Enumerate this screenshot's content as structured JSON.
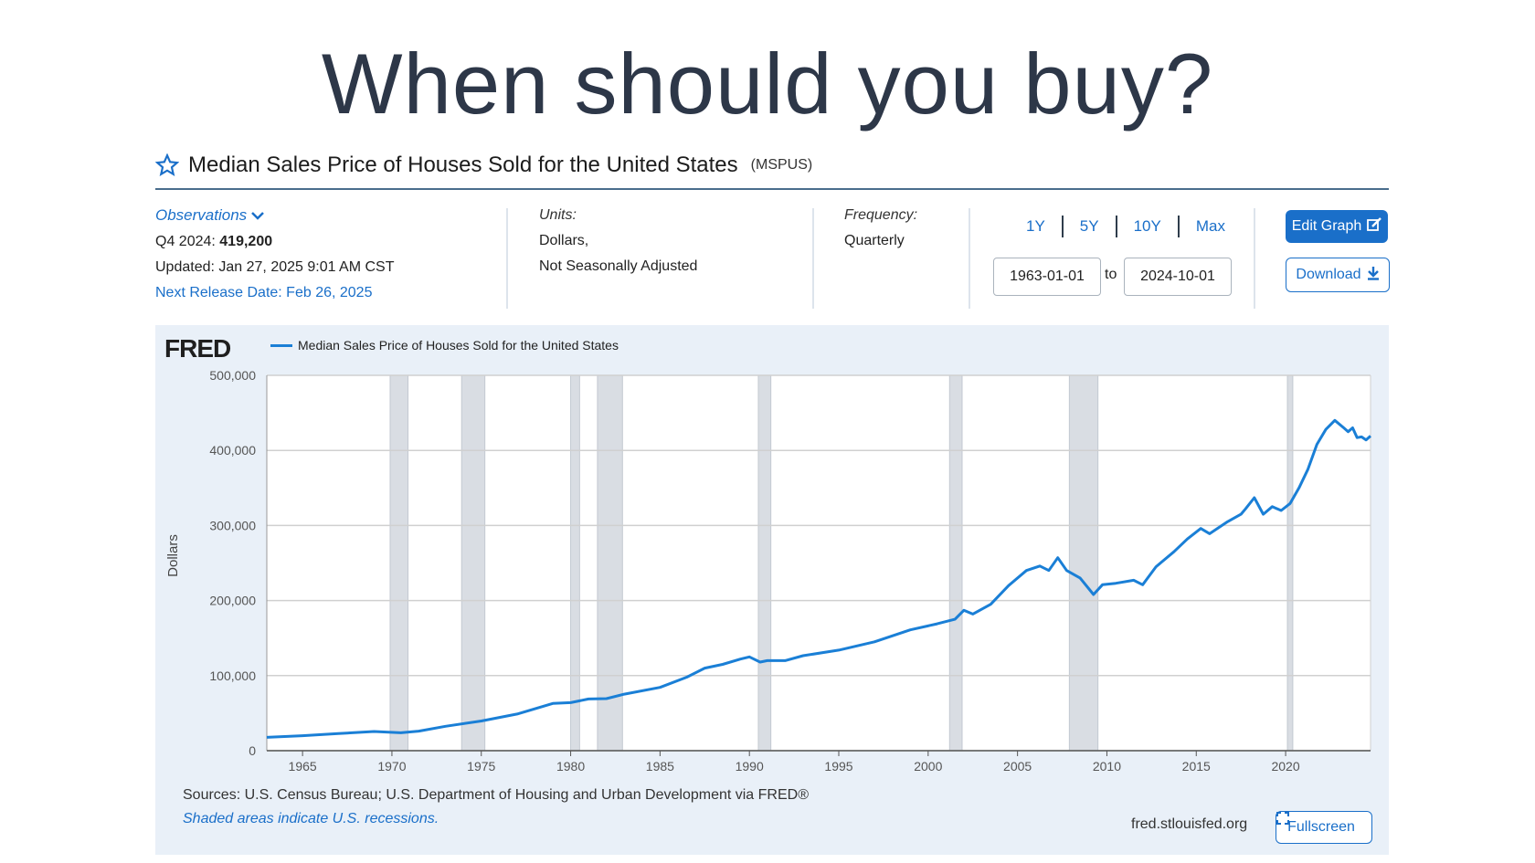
{
  "slide": {
    "title": "When should you buy?"
  },
  "series": {
    "title": "Median Sales Price of Houses Sold for the United States",
    "code": "(MSPUS)",
    "observations_label": "Observations",
    "observation_period": "Q4 2024:",
    "observation_value": "419,200",
    "updated": "Updated: Jan 27, 2025 9:01 AM CST",
    "next_release": "Next Release Date: Feb 26, 2025",
    "units_label": "Units:",
    "units_line1": "Dollars,",
    "units_line2": "Not Seasonally Adjusted",
    "frequency_label": "Frequency:",
    "frequency_value": "Quarterly"
  },
  "controls": {
    "range_buttons": [
      "1Y",
      "5Y",
      "10Y",
      "Max"
    ],
    "start_date": "1963-01-01",
    "to_label": "to",
    "end_date": "2024-10-01",
    "edit_graph": "Edit Graph",
    "download": "Download",
    "fullscreen": "Fullscreen"
  },
  "footer": {
    "logo": "FRED",
    "sources": "Sources: U.S. Census Bureau; U.S. Department of Housing and Urban Development via FRED®",
    "shaded_note": "Shaded areas indicate U.S. recessions.",
    "url": "fred.stlouisfed.org"
  },
  "colors": {
    "line": "#1a7fd6",
    "accent": "#1a6fc9",
    "recession": "#d9dde3",
    "panel": "#e9f0f8",
    "title": "#2d3748"
  },
  "chart_data": {
    "type": "line",
    "title": "Median Sales Price of Houses Sold for the United States",
    "legend": [
      "Median Sales Price of Houses Sold for the United States"
    ],
    "xlabel": "",
    "ylabel": "Dollars",
    "xlim": [
      1963.0,
      2024.75
    ],
    "ylim": [
      0,
      500000
    ],
    "y_ticks": [
      0,
      100000,
      200000,
      300000,
      400000,
      500000
    ],
    "y_tick_labels": [
      "0",
      "100,000",
      "200,000",
      "300,000",
      "400,000",
      "500,000"
    ],
    "x_ticks": [
      1965,
      1970,
      1975,
      1980,
      1985,
      1990,
      1995,
      2000,
      2005,
      2010,
      2015,
      2020
    ],
    "x_tick_labels": [
      "1965",
      "1970",
      "1975",
      "1980",
      "1985",
      "1990",
      "1995",
      "2000",
      "2005",
      "2010",
      "2015",
      "2020"
    ],
    "recessions": [
      [
        1969.9,
        1970.9
      ],
      [
        1973.9,
        1975.2
      ],
      [
        1980.0,
        1980.5
      ],
      [
        1981.5,
        1982.9
      ],
      [
        1990.5,
        1991.2
      ],
      [
        2001.2,
        2001.9
      ],
      [
        2007.9,
        2009.5
      ],
      [
        2020.1,
        2020.4
      ]
    ],
    "series": [
      {
        "name": "MSPUS",
        "x": [
          1963.0,
          1965.0,
          1967.0,
          1969.0,
          1970.5,
          1971.5,
          1973.0,
          1975.0,
          1977.0,
          1979.0,
          1980.0,
          1981.0,
          1982.0,
          1983.0,
          1985.0,
          1986.5,
          1987.5,
          1988.5,
          1989.5,
          1990.0,
          1990.6,
          1991.0,
          1992.0,
          1993.0,
          1995.0,
          1997.0,
          1999.0,
          2000.5,
          2001.5,
          2002.0,
          2002.5,
          2003.5,
          2004.5,
          2005.5,
          2006.25,
          2006.75,
          2007.25,
          2007.75,
          2008.5,
          2009.25,
          2009.75,
          2010.5,
          2011.5,
          2012.0,
          2012.75,
          2013.75,
          2014.5,
          2015.25,
          2015.75,
          2016.75,
          2017.5,
          2017.75,
          2018.25,
          2018.75,
          2019.25,
          2019.75,
          2020.25,
          2020.75,
          2021.25,
          2021.75,
          2022.25,
          2022.75,
          2023.25,
          2023.5,
          2023.75,
          2024.0,
          2024.25,
          2024.5,
          2024.75
        ],
        "y": [
          17800,
          20000,
          22700,
          25600,
          23900,
          26000,
          32500,
          39500,
          48800,
          62900,
          64000,
          68900,
          69300,
          75300,
          84300,
          97900,
          110000,
          115000,
          122000,
          125000,
          118000,
          120000,
          120000,
          126500,
          133900,
          145000,
          161000,
          169000,
          175000,
          187000,
          182000,
          195000,
          220000,
          240000,
          246000,
          240000,
          257000,
          240000,
          230000,
          208000,
          221000,
          223000,
          227000,
          221000,
          245000,
          265000,
          282000,
          296000,
          289000,
          305000,
          315000,
          322000,
          337000,
          315000,
          325000,
          320000,
          329300,
          350000,
          375000,
          408000,
          428000,
          440000,
          430000,
          425000,
          430000,
          417000,
          418000,
          414000,
          419200
        ]
      }
    ]
  }
}
